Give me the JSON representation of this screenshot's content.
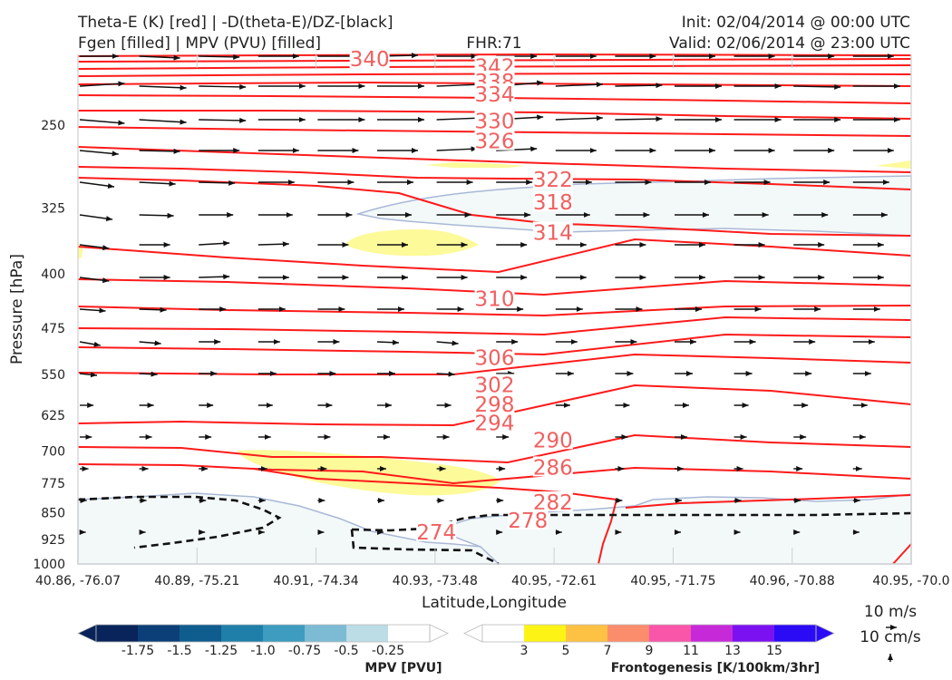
{
  "header": {
    "line1_left": "Theta-E (K) [red] | -D(theta-E)/DZ-[black]",
    "line2_left": "Fgen [filled] | MPV (PVU) [filled]",
    "fhr": "FHR:71",
    "init": "Init: 02/04/2014 @ 00:00 UTC",
    "valid": "Valid: 02/06/2014 @ 23:00 UTC"
  },
  "chart_data": {
    "type": "cross-section",
    "xlabel": "Latitude,Longitude",
    "ylabel": "Pressure [hPa]",
    "x_ticks": [
      "40.86, -76.07",
      "40.89, -75.21",
      "40.91, -74.34",
      "40.93, -73.48",
      "40.95, -72.61",
      "40.95, -71.75",
      "40.96, -70.88",
      "40.95, -70.0"
    ],
    "y_ticks": [
      "250",
      "325",
      "400",
      "475",
      "550",
      "625",
      "700",
      "775",
      "850",
      "925",
      "1000"
    ],
    "ylim": [
      1000,
      200
    ],
    "y_scale": "log",
    "theta_e_labels": [
      {
        "text": "340",
        "x": 0.35,
        "p": 203
      },
      {
        "text": "342",
        "x": 0.5,
        "p": 208
      },
      {
        "text": "338",
        "x": 0.5,
        "p": 218
      },
      {
        "text": "334",
        "x": 0.5,
        "p": 227
      },
      {
        "text": "330",
        "x": 0.5,
        "p": 247
      },
      {
        "text": "326",
        "x": 0.5,
        "p": 263
      },
      {
        "text": "322",
        "x": 0.57,
        "p": 297
      },
      {
        "text": "318",
        "x": 0.57,
        "p": 319
      },
      {
        "text": "314",
        "x": 0.57,
        "p": 351
      },
      {
        "text": "310",
        "x": 0.5,
        "p": 433
      },
      {
        "text": "306",
        "x": 0.5,
        "p": 521
      },
      {
        "text": "302",
        "x": 0.5,
        "p": 568
      },
      {
        "text": "298",
        "x": 0.5,
        "p": 604
      },
      {
        "text": "294",
        "x": 0.5,
        "p": 641
      },
      {
        "text": "290",
        "x": 0.57,
        "p": 676
      },
      {
        "text": "286",
        "x": 0.57,
        "p": 737
      },
      {
        "text": "282",
        "x": 0.57,
        "p": 823
      },
      {
        "text": "278",
        "x": 0.54,
        "p": 871
      },
      {
        "text": "274",
        "x": 0.43,
        "p": 904
      }
    ],
    "colorbars": {
      "mpv": {
        "label": "MPV [PVU]",
        "ticks": [
          "-1.75",
          "-1.5",
          "-1.25",
          "-1.0",
          "-0.75",
          "-0.5",
          "-0.25"
        ],
        "colors": [
          "#08245a",
          "#0c3f78",
          "#0f5d8e",
          "#1f7fa8",
          "#3d9cc0",
          "#7dbad3",
          "#bcdce6",
          "#ffffff"
        ]
      },
      "frontogenesis": {
        "label": "Frontogenesis [K/100km/3hr]",
        "ticks": [
          "3",
          "5",
          "7",
          "9",
          "11",
          "13",
          "15"
        ],
        "colors": [
          "#ffffff",
          "#fdf416",
          "#fdc243",
          "#fc8d6c",
          "#fa56a9",
          "#c62ad8",
          "#7b11f0",
          "#2b0bf6"
        ]
      }
    },
    "reference_vector": [
      "10 m/s",
      "10 cm/s"
    ],
    "colors": {
      "theta_e": "#ff1a1a",
      "theta_e_label": "#f06060",
      "vectors": "#111111",
      "mpv_fill": "#f3f9f9",
      "fgen_fill": "#fdfa9a"
    }
  }
}
